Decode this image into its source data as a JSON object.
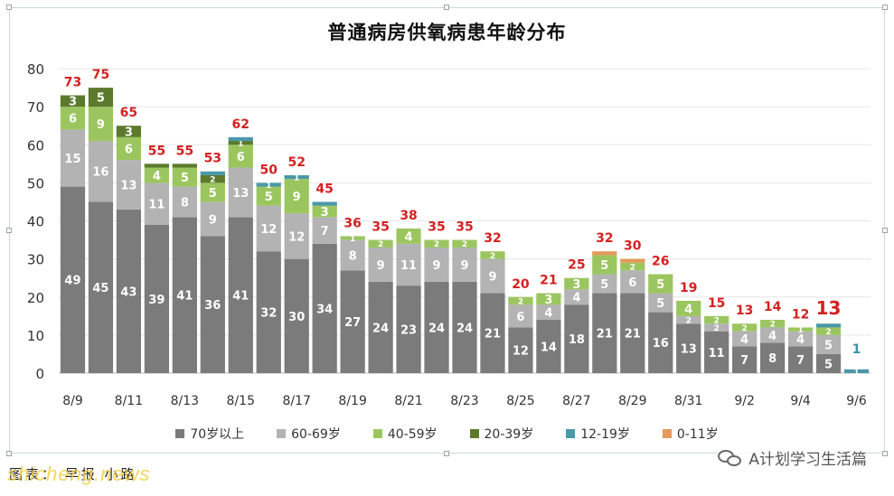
{
  "chart_data": {
    "type": "bar",
    "stacked": true,
    "title": "普通病房供氧病患年龄分布",
    "ylim": [
      0,
      80
    ],
    "yticks": [
      0,
      10,
      20,
      30,
      40,
      50,
      60,
      70,
      80
    ],
    "x_tick_labels": [
      "8/9",
      "8/11",
      "8/13",
      "8/15",
      "8/17",
      "8/19",
      "8/21",
      "8/23",
      "8/25",
      "8/27",
      "8/29",
      "8/31",
      "9/2",
      "9/4",
      "9/6"
    ],
    "categories": [
      "8/9",
      "8/10",
      "8/11",
      "8/12",
      "8/13",
      "8/14",
      "8/15",
      "8/16",
      "8/17",
      "8/18",
      "8/19",
      "8/20",
      "8/21",
      "8/22",
      "8/23",
      "8/24",
      "8/25",
      "8/26",
      "8/27",
      "8/28",
      "8/29",
      "8/30",
      "8/31",
      "9/1",
      "9/2",
      "9/3",
      "9/4",
      "9/5",
      "9/6"
    ],
    "series": [
      {
        "name": "70岁以上",
        "color": "#7b7b7b",
        "values": [
          49,
          45,
          43,
          39,
          41,
          36,
          41,
          32,
          30,
          34,
          27,
          24,
          23,
          24,
          24,
          21,
          12,
          14,
          18,
          21,
          21,
          16,
          13,
          11,
          7,
          8,
          7,
          5,
          0
        ],
        "labels": [
          "49",
          "45",
          "43",
          "39",
          "41",
          "36",
          "41",
          "32",
          "30",
          "34",
          "27",
          "24",
          "23",
          "24",
          "24",
          "21",
          "12",
          "14",
          "18",
          "21",
          "21",
          "16",
          "13",
          "11",
          "7",
          "8",
          "7",
          "5",
          ""
        ]
      },
      {
        "name": "60-69岁",
        "color": "#b3b3b3",
        "values": [
          15,
          16,
          13,
          11,
          8,
          9,
          13,
          12,
          12,
          7,
          8,
          9,
          11,
          9,
          9,
          9,
          6,
          4,
          4,
          5,
          6,
          5,
          2,
          2,
          4,
          4,
          4,
          5,
          0
        ],
        "labels": [
          "15",
          "16",
          "13",
          "11",
          "8",
          "9",
          "13",
          "12",
          "12",
          "7",
          "8",
          "9",
          "11",
          "9",
          "9",
          "9",
          "6",
          "4",
          "4",
          "5",
          "6",
          "5",
          "2",
          "2",
          "4",
          "4",
          "4",
          "5",
          ""
        ]
      },
      {
        "name": "40-59岁",
        "color": "#9bc65f",
        "values": [
          6,
          9,
          6,
          4,
          5,
          5,
          6,
          5,
          9,
          3,
          1,
          2,
          4,
          2,
          2,
          2,
          2,
          3,
          3,
          5,
          2,
          5,
          4,
          2,
          2,
          2,
          1,
          2,
          0
        ],
        "labels": [
          "6",
          "9",
          "6",
          "4",
          "5",
          "5",
          "6",
          "5",
          "9",
          "3",
          "1",
          "2",
          "4",
          "2",
          "2",
          "2",
          "2",
          "3",
          "3",
          "5",
          "2",
          "5",
          "4",
          "2",
          "2",
          "2",
          "1",
          "2",
          ""
        ]
      },
      {
        "name": "20-39岁",
        "color": "#5c7a2d",
        "values": [
          3,
          5,
          3,
          1,
          1,
          2,
          1,
          0,
          0,
          0,
          0,
          0,
          0,
          0,
          0,
          0,
          0,
          0,
          0,
          0,
          0,
          0,
          0,
          0,
          0,
          0,
          0,
          0,
          0
        ],
        "labels": [
          "3",
          "5",
          "3",
          "",
          "",
          "2",
          "1",
          "",
          "",
          "",
          "",
          "",
          "",
          "",
          "",
          "",
          "",
          "",
          "",
          "",
          "",
          "",
          "",
          "",
          "",
          "",
          "",
          "",
          ""
        ]
      },
      {
        "name": "12-19岁",
        "color": "#4a98a8",
        "values": [
          0,
          0,
          0,
          0,
          0,
          1,
          1,
          1,
          1,
          1,
          0,
          0,
          0,
          0,
          0,
          0,
          0,
          0,
          0,
          0,
          0,
          0,
          0,
          0,
          0,
          0,
          0,
          1,
          1
        ],
        "labels": [
          "",
          "",
          "",
          "",
          "",
          "",
          "",
          "1",
          "1",
          "",
          "",
          "",
          "",
          "",
          "",
          "",
          "",
          "",
          "",
          "",
          "",
          "",
          "",
          "",
          "",
          "",
          "",
          "",
          "1"
        ]
      },
      {
        "name": "0-11岁",
        "color": "#e39a5a",
        "values": [
          0,
          0,
          0,
          0,
          0,
          0,
          0,
          0,
          0,
          0,
          0,
          0,
          0,
          0,
          0,
          0,
          0,
          0,
          0,
          1,
          1,
          0,
          0,
          0,
          0,
          0,
          0,
          0,
          0
        ],
        "labels": [
          "",
          "",
          "",
          "",
          "",
          "",
          "",
          "",
          "",
          "",
          "",
          "",
          "",
          "",
          "",
          "",
          "",
          "",
          "",
          "",
          "",
          "",
          "",
          "",
          "",
          "",
          "",
          "",
          ""
        ]
      }
    ],
    "totals": [
      "73",
      "75",
      "65",
      "55",
      "55",
      "53",
      "62",
      "50",
      "52",
      "45",
      "36",
      "35",
      "38",
      "35",
      "35",
      "32",
      "20",
      "21",
      "25",
      "32",
      "30",
      "26",
      "19",
      "15",
      "13",
      "14",
      "12",
      "13",
      "1"
    ],
    "highlight_total_index": 27,
    "legend_position": "bottom",
    "grid": true
  },
  "footer": {
    "credit": "图表： 早报 小路",
    "watermark": "shicheng.news",
    "wechat_account": "A计划学习生活篇"
  },
  "colors": {
    "total_label": "#d62020",
    "last_label": "#3a93a8",
    "grid": "#e6e6e6",
    "frame": "#c9d9cf"
  }
}
